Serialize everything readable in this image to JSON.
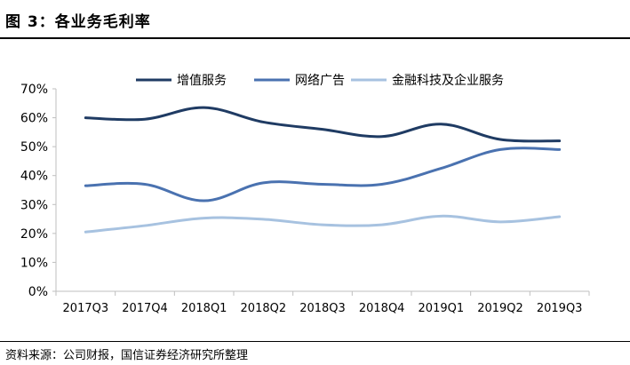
{
  "figure": {
    "title": "图 3：各业务毛利率",
    "source": "资料来源：公司财报，国信证券经济研究所整理"
  },
  "colors": {
    "series": [
      "#1f3b63",
      "#4a72b0",
      "#a7c2e0"
    ],
    "axis": "#bfbfbf"
  },
  "chart_data": {
    "type": "line",
    "categories": [
      "2017Q3",
      "2017Q4",
      "2018Q1",
      "2018Q2",
      "2018Q3",
      "2018Q4",
      "2019Q1",
      "2019Q2",
      "2019Q3"
    ],
    "yticks": [
      "0%",
      "10%",
      "20%",
      "30%",
      "40%",
      "50%",
      "60%",
      "70%"
    ],
    "ylim": [
      0,
      70
    ],
    "grid": false,
    "legend_position": "top",
    "series": [
      {
        "name": "增值服务",
        "values": [
          60,
          59.5,
          63.5,
          58.5,
          56,
          53.5,
          57.8,
          52.5,
          52
        ]
      },
      {
        "name": "网络广告",
        "values": [
          36.5,
          37,
          31.3,
          37.5,
          37,
          37,
          42.5,
          49,
          49
        ]
      },
      {
        "name": "金融科技及企业服务",
        "values": [
          20.5,
          22.7,
          25.3,
          24.9,
          23,
          23,
          26,
          24,
          25.8
        ]
      }
    ]
  }
}
